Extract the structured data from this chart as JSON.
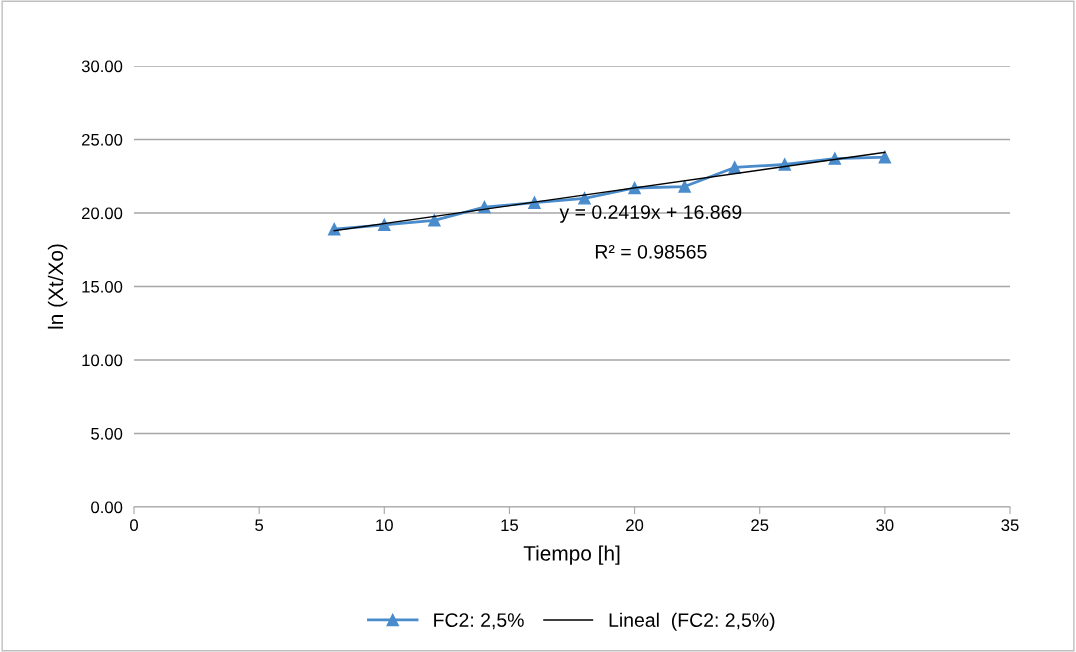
{
  "chart_data": {
    "type": "line",
    "xlabel": "Tiempo [h]",
    "ylabel": "ln (Xt/Xo)",
    "xlim": [
      0,
      35
    ],
    "xticks": [
      0,
      5,
      10,
      15,
      20,
      25,
      30,
      35
    ],
    "ylim": [
      0,
      30
    ],
    "yticks": [
      {
        "value": 0,
        "label": "0.00"
      },
      {
        "value": 5,
        "label": "5.00"
      },
      {
        "value": 10,
        "label": "10.00"
      },
      {
        "value": 15,
        "label": "15.00"
      },
      {
        "value": 20,
        "label": "20.00"
      },
      {
        "value": 25,
        "label": "25.00"
      },
      {
        "value": 30,
        "label": "30.00"
      }
    ],
    "grid": "y",
    "legend": "bottom",
    "line_style": "solid",
    "series": [
      {
        "name": "FC2: 2,5%",
        "color": "#4a8ccb",
        "marker": "triangle",
        "x": [
          8,
          10,
          12,
          14,
          16,
          18,
          20,
          22,
          24,
          26,
          28,
          30
        ],
        "values": [
          18.9,
          19.2,
          19.5,
          20.4,
          20.7,
          21.0,
          21.7,
          21.8,
          23.1,
          23.3,
          23.7,
          23.8
        ]
      },
      {
        "name": "Lineal  (FC2: 2,5%)",
        "color": "#000000",
        "marker": "none",
        "x": [
          8,
          30
        ],
        "values": [
          18.8,
          24.13
        ]
      }
    ],
    "annotations": [
      "y = 0.2419x + 16.869",
      "R² = 0.98565"
    ]
  }
}
